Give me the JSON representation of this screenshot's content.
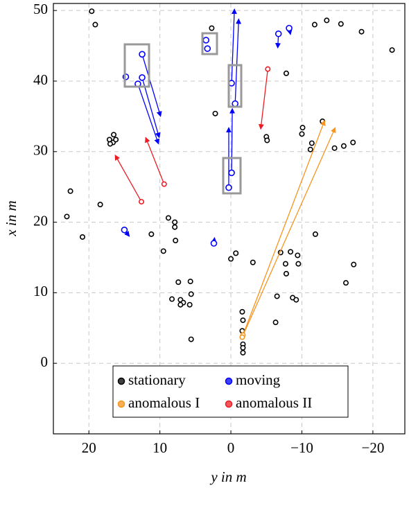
{
  "chart_data": {
    "type": "scatter",
    "xlabel": "y in m",
    "ylabel": "x in m",
    "xlim": [
      25,
      -24.5
    ],
    "ylim": [
      -10,
      51
    ],
    "xticks": [
      20,
      10,
      0,
      {
        "value": -10,
        "label": "−10"
      },
      {
        "value": -20,
        "label": "−20"
      }
    ],
    "yticks": [
      0,
      10,
      20,
      30,
      40,
      50
    ],
    "grid": true,
    "legend": "lower center",
    "series": [
      {
        "name": "stationary",
        "color": "#000000",
        "x": [
          19.6,
          19.1,
          22.6,
          23.1,
          20.9,
          18.4,
          17.1,
          16.6,
          16.2,
          16.5,
          17.0,
          11.2,
          8.8,
          7.9,
          7.9,
          7.8,
          9.5,
          7.4,
          5.7,
          8.3,
          7.1,
          6.7,
          7.1,
          5.8,
          5.6,
          5.6,
          2.7,
          2.2,
          0.0,
          -0.7,
          -3.1,
          -1.6,
          -1.7,
          -1.6,
          -1.7,
          -1.7,
          -1.7,
          -5.0,
          -5.1,
          -6.3,
          -6.5,
          -7.0,
          -7.8,
          -7.7,
          -7.8,
          -8.4,
          -8.7,
          -9.2,
          -9.4,
          -9.5,
          -10.1,
          -10.0,
          -11.2,
          -11.4,
          -12.9,
          -11.8,
          -13.5,
          -15.5,
          -18.4,
          -11.9,
          -14.6,
          -15.9,
          -17.2,
          -17.3,
          -16.2,
          -22.7
        ],
        "values": [
          49.9,
          48.0,
          24.4,
          20.8,
          17.9,
          22.5,
          31.7,
          31.3,
          31.7,
          32.4,
          31.1,
          18.3,
          20.6,
          20.0,
          19.3,
          17.4,
          15.9,
          11.5,
          11.6,
          9.1,
          9.0,
          8.6,
          8.3,
          8.3,
          9.8,
          3.4,
          47.5,
          35.4,
          14.8,
          15.6,
          14.3,
          7.3,
          6.1,
          4.6,
          2.7,
          2.2,
          1.5,
          32.1,
          31.6,
          5.8,
          9.5,
          15.7,
          41.1,
          14.1,
          12.7,
          15.8,
          9.3,
          9.0,
          15.3,
          14.1,
          33.4,
          32.5,
          30.3,
          31.2,
          34.3,
          48.0,
          48.6,
          48.1,
          47.0,
          18.3,
          30.5,
          30.8,
          31.3,
          14.0,
          11.4,
          44.4
        ]
      },
      {
        "name": "moving",
        "color": "#0000ff",
        "x": [
          12.5,
          12.5,
          13.1,
          14.8,
          3.5,
          3.3,
          0.3,
          -0.1,
          -0.1,
          -0.6,
          -6.7,
          -8.2,
          15.0,
          2.4
        ],
        "values": [
          43.8,
          40.5,
          39.6,
          40.6,
          45.8,
          44.6,
          24.9,
          27.0,
          39.7,
          36.8,
          46.7,
          47.5,
          18.9,
          17.0
        ],
        "x_end": [
          9.9,
          10.1,
          10.2,
          null,
          null,
          null,
          0.3,
          -0.2,
          -0.5,
          -1.1,
          -6.6,
          -8.4,
          14.3,
          2.3
        ],
        "values_end": [
          35.0,
          32.0,
          31.1,
          null,
          null,
          null,
          33.4,
          36.1,
          50.2,
          48.8,
          44.7,
          46.6,
          18.0,
          17.8
        ]
      },
      {
        "name": "anomalous I",
        "color": "#f7941d",
        "x": [
          -1.7,
          -1.6
        ],
        "values": [
          4.0,
          3.7
        ],
        "x_end": [
          -13.2,
          -14.7
        ],
        "values_end": [
          34.4,
          33.4
        ]
      },
      {
        "name": "anomalous II",
        "color": "#ed1c24",
        "x": [
          12.6,
          9.4,
          -5.2
        ],
        "values": [
          22.9,
          25.4,
          41.7
        ],
        "x_end": [
          16.3,
          12.0,
          -4.2
        ],
        "values_end": [
          29.5,
          32.0,
          33.2
        ]
      }
    ]
  }
}
